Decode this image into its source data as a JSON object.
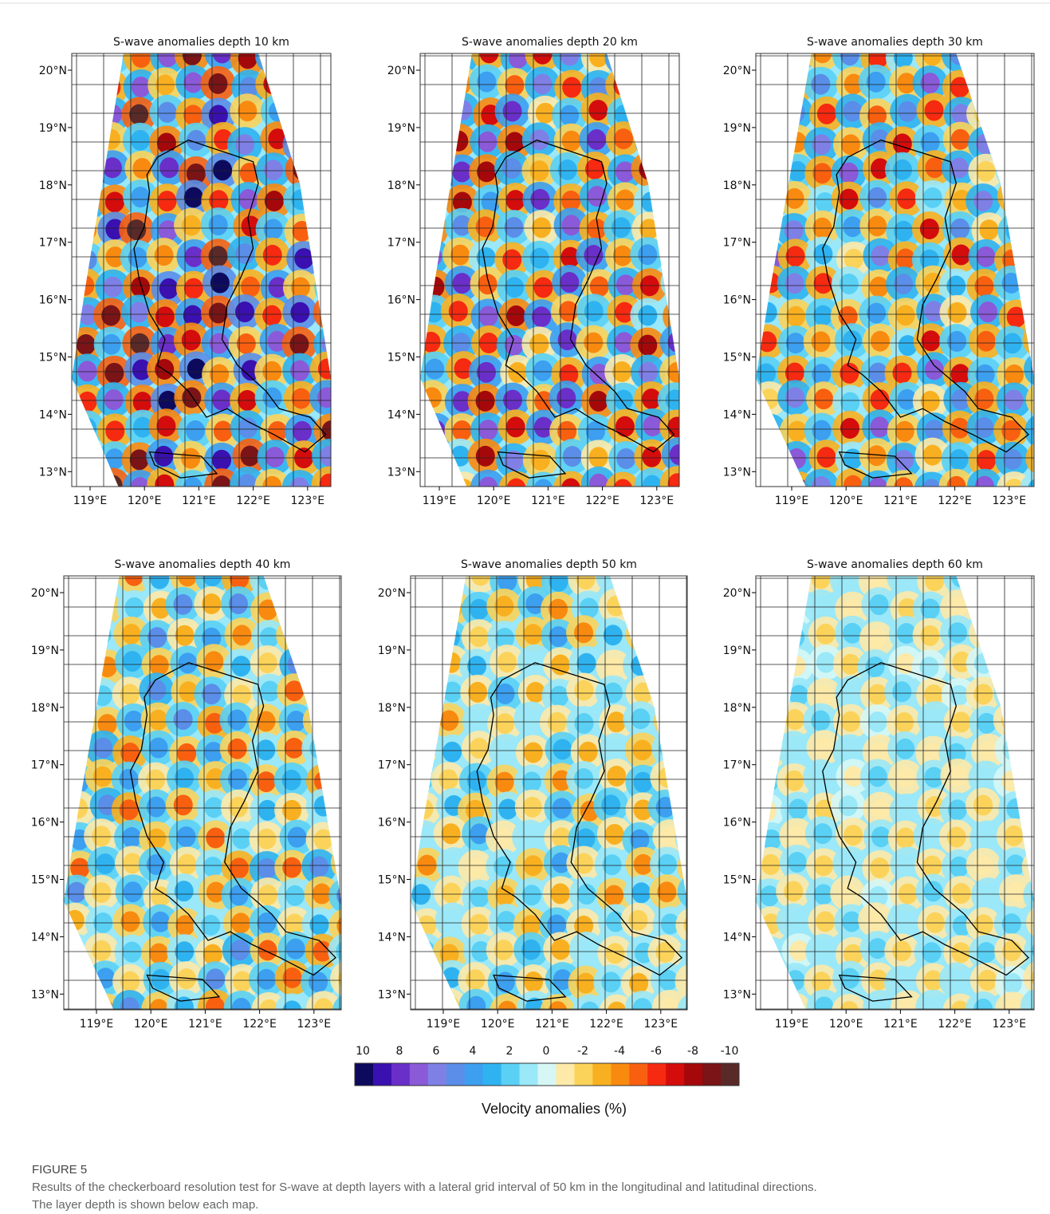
{
  "figure": {
    "panels": [
      {
        "title": "S-wave anomalies depth 10 km"
      },
      {
        "title": "S-wave anomalies depth 20 km"
      },
      {
        "title": "S-wave anomalies depth 30 km"
      },
      {
        "title": "S-wave anomalies depth 40 km"
      },
      {
        "title": "S-wave anomalies depth 50 km"
      },
      {
        "title": "S-wave anomalies depth 60 km"
      }
    ],
    "lat_labels": [
      "20°N",
      "19°N",
      "18°N",
      "17°N",
      "16°N",
      "15°N",
      "14°N",
      "13°N"
    ],
    "lon_labels": [
      "119°E",
      "120°E",
      "121°E",
      "122°E",
      "123°E"
    ]
  },
  "colorbar": {
    "labels": [
      "10",
      "8",
      "6",
      "4",
      "2",
      "0",
      "-2",
      "-4",
      "-6",
      "-8",
      "-10"
    ],
    "colors": [
      "#0d0a5e",
      "#3a10b0",
      "#6a2fc8",
      "#8a5ad8",
      "#7f80e6",
      "#5a8ee8",
      "#3c9ff0",
      "#2fb3f0",
      "#5ad0f5",
      "#9ae8f8",
      "#d6f7f5",
      "#fde9a8",
      "#fcd35a",
      "#f9b020",
      "#f98a10",
      "#f86010",
      "#f52a10",
      "#d40c0c",
      "#a5080a",
      "#7a1416",
      "#5a2a28"
    ],
    "title": "Velocity anomalies (%)"
  },
  "caption": {
    "label": "FIGURE 5",
    "text": [
      "Results of the checkerboard resolution test for S-wave at depth layers with a lateral grid interval of 50 km in the longitudinal and latitudinal directions.",
      "The layer depth is shown below each map."
    ]
  }
}
